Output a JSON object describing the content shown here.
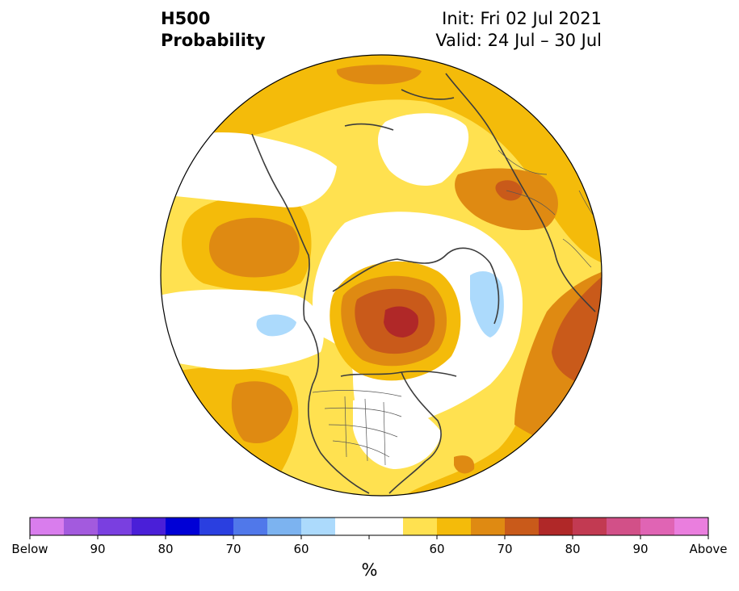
{
  "header": {
    "title_line1": "H500",
    "title_line2": "Probability",
    "init": "Init: Fri 02 Jul 2021",
    "valid": "Valid: 24 Jul – 30 Jul"
  },
  "colorbar": {
    "unit": "%",
    "colors": [
      "#d97ded",
      "#a35ade",
      "#7a3fe0",
      "#4a1fd8",
      "#0000d6",
      "#2a3fe0",
      "#5078ea",
      "#7cb3f0",
      "#acdafc",
      "#ffffff",
      "#ffffff",
      "#ffe150",
      "#f4bb0a",
      "#df8a12",
      "#c95a1a",
      "#b02828",
      "#c23a52",
      "#d25088",
      "#e064b4",
      "#ea7ede"
    ],
    "tick_labels": [
      {
        "index": 0,
        "text": "Below"
      },
      {
        "index": 2,
        "text": "90"
      },
      {
        "index": 4,
        "text": "80"
      },
      {
        "index": 6,
        "text": "70"
      },
      {
        "index": 8,
        "text": "60"
      },
      {
        "index": 12,
        "text": "60"
      },
      {
        "index": 14,
        "text": "70"
      },
      {
        "index": 16,
        "text": "80"
      },
      {
        "index": 18,
        "text": "90"
      },
      {
        "index": 20,
        "text": "Above"
      }
    ]
  },
  "map": {
    "projection": "north-polar-stereographic",
    "fill_colors": {
      "base": "#ffe150",
      "p60": "#f4bb0a",
      "p70": "#df8a12",
      "p75": "#c95a1a",
      "p80": "#b02828",
      "neutral": "#ffffff",
      "below60": "#acdafc"
    }
  }
}
